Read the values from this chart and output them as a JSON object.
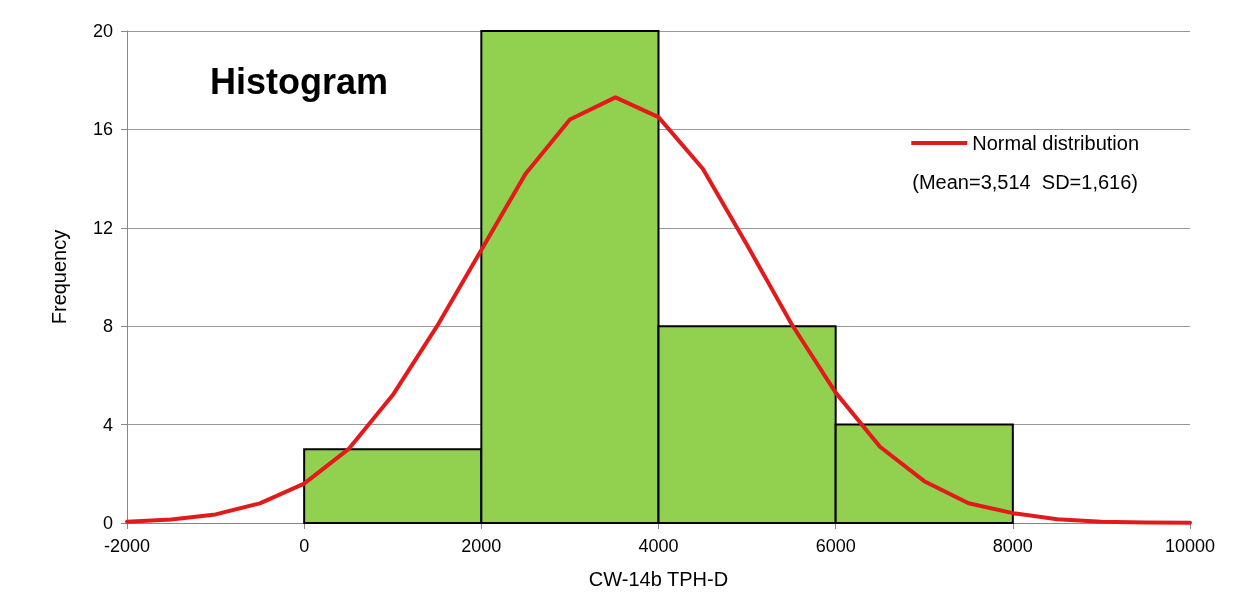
{
  "chart_data": {
    "type": "histogram",
    "title": "Histogram",
    "xlabel": "CW-14b TPH-D",
    "ylabel": "Frequency",
    "bins": [
      0,
      2000,
      4000,
      6000,
      8000
    ],
    "values": [
      3,
      20,
      8,
      4
    ],
    "color": "#92d050",
    "series": [
      {
        "type": "line",
        "name": "Normal distribution",
        "color": "#e31a1c",
        "x": [
          -2000,
          -1500,
          -1000,
          -500,
          0,
          500,
          1000,
          1500,
          2000,
          2500,
          3000,
          3514,
          4000,
          4500,
          5000,
          5500,
          6000,
          6500,
          7000,
          7500,
          8000,
          8500,
          9000,
          9500,
          10000
        ],
        "values": [
          0.05,
          0.14,
          0.35,
          0.8,
          1.6,
          3.0,
          5.2,
          8.0,
          11.1,
          14.2,
          16.4,
          17.3,
          16.5,
          14.4,
          11.3,
          8.1,
          5.3,
          3.1,
          1.7,
          0.8,
          0.4,
          0.15,
          0.05,
          0.02,
          0.01
        ]
      }
    ],
    "annotations": [
      "(Mean=3,514  SD=1,616)"
    ],
    "xlim": [
      -2000,
      10000
    ],
    "xticks": [
      -2000,
      0,
      2000,
      4000,
      6000,
      8000,
      10000
    ],
    "ylim": [
      0,
      20
    ],
    "yticks": [
      0,
      4,
      8,
      12,
      16,
      20
    ],
    "grid": "y",
    "legend": "top right",
    "marker": "none",
    "line_style": "solid"
  }
}
